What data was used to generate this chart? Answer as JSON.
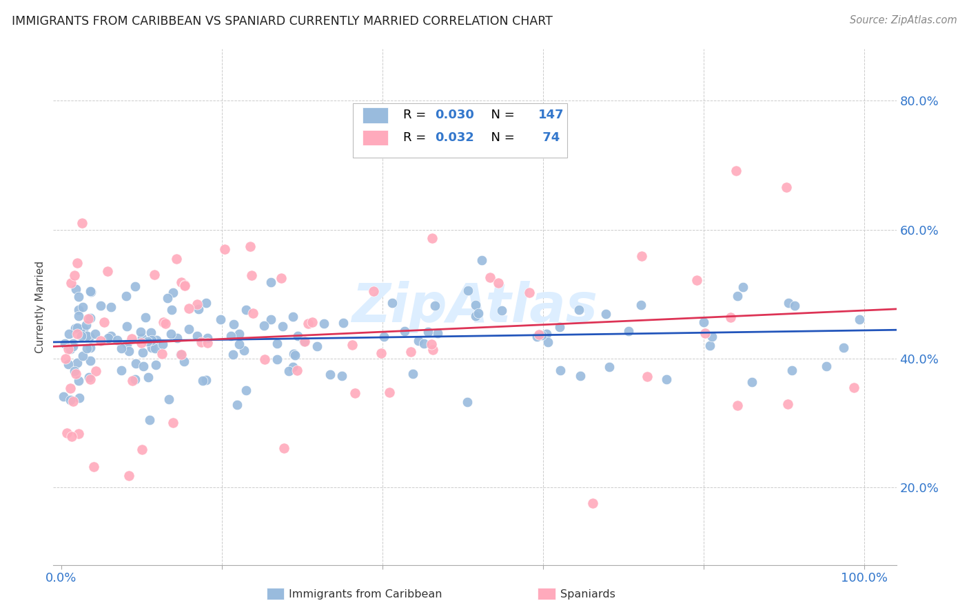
{
  "title": "IMMIGRANTS FROM CARIBBEAN VS SPANIARD CURRENTLY MARRIED CORRELATION CHART",
  "source": "Source: ZipAtlas.com",
  "ylabel": "Currently Married",
  "blue_R": "0.030",
  "blue_N": "147",
  "pink_R": "0.032",
  "pink_N": "74",
  "blue_color": "#99BBDD",
  "pink_color": "#FFAABC",
  "blue_line_color": "#2255BB",
  "pink_line_color": "#DD3355",
  "background_color": "#FFFFFF",
  "grid_color": "#CCCCCC",
  "title_color": "#222222",
  "axis_label_color": "#3377CC",
  "watermark_color": "#DDEEFF",
  "legend_text_color": "#000000"
}
